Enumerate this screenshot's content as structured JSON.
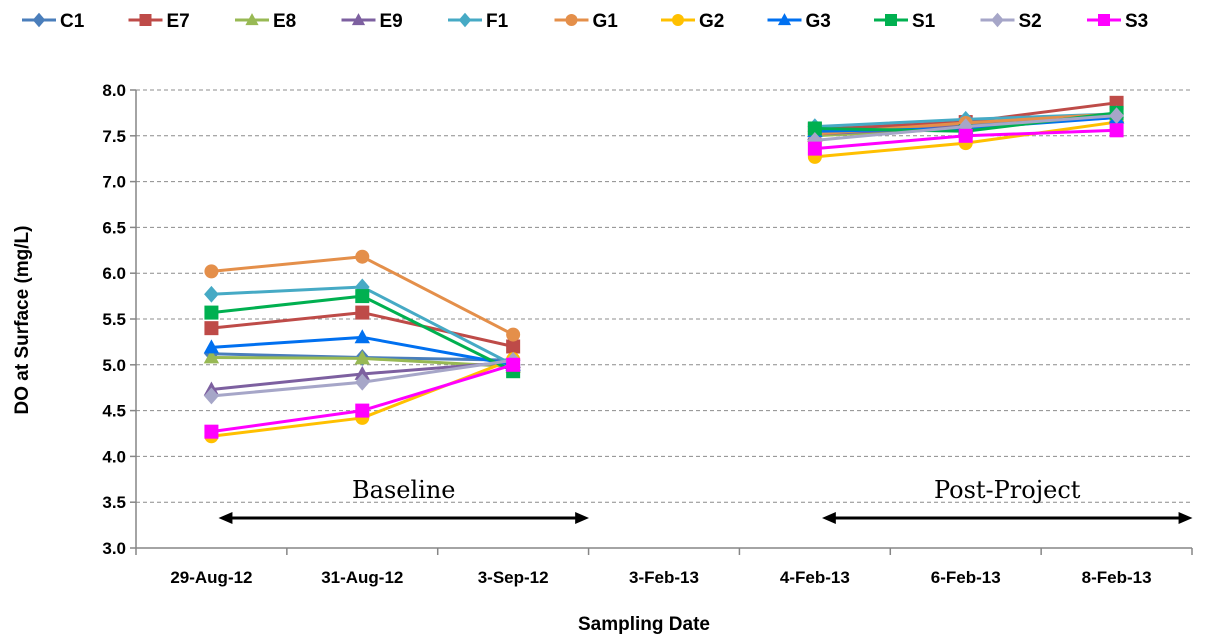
{
  "chart_data": {
    "type": "line",
    "title": "",
    "xlabel": "Sampling Date",
    "ylabel": "DO at Surface (mg/L)",
    "categories": [
      "29-Aug-12",
      "31-Aug-12",
      "3-Sep-12",
      "3-Feb-13",
      "4-Feb-13",
      "6-Feb-13",
      "8-Feb-13"
    ],
    "ylim": [
      3.0,
      8.0
    ],
    "yticks": [
      "3.0",
      "3.5",
      "4.0",
      "4.5",
      "5.0",
      "5.5",
      "6.0",
      "6.5",
      "7.0",
      "7.5",
      "8.0"
    ],
    "grid": "horizontal dashed",
    "legend_position": "top",
    "series": [
      {
        "name": "C1",
        "color": "#4a7ebb",
        "marker": "diamond",
        "values": [
          5.12,
          5.08,
          5.05,
          null,
          7.55,
          7.62,
          7.7
        ]
      },
      {
        "name": "E7",
        "color": "#be4b48",
        "marker": "square",
        "values": [
          5.4,
          5.57,
          5.2,
          null,
          7.57,
          7.65,
          7.86
        ]
      },
      {
        "name": "E8",
        "color": "#98b954",
        "marker": "triangle",
        "values": [
          5.08,
          5.07,
          4.98,
          null,
          7.5,
          7.58,
          7.72
        ]
      },
      {
        "name": "E9",
        "color": "#7d60a0",
        "marker": "triangle",
        "values": [
          4.73,
          4.9,
          5.03,
          null,
          7.52,
          7.6,
          7.7
        ]
      },
      {
        "name": "F1",
        "color": "#46aac5",
        "marker": "diamond",
        "values": [
          5.77,
          5.85,
          5.0,
          null,
          7.6,
          7.68,
          7.74
        ]
      },
      {
        "name": "G1",
        "color": "#e48f4a",
        "marker": "circle",
        "values": [
          6.02,
          6.18,
          5.33,
          null,
          7.52,
          7.64,
          7.74
        ]
      },
      {
        "name": "G2",
        "color": "#ffc000",
        "marker": "circle",
        "values": [
          4.22,
          4.42,
          5.06,
          null,
          7.27,
          7.42,
          7.65
        ]
      },
      {
        "name": "G3",
        "color": "#0070f0",
        "marker": "triangle",
        "values": [
          5.19,
          5.3,
          5.0,
          null,
          7.55,
          7.58,
          7.7
        ]
      },
      {
        "name": "S1",
        "color": "#00b050",
        "marker": "square",
        "values": [
          5.57,
          5.75,
          4.93,
          null,
          7.58,
          7.55,
          7.75
        ]
      },
      {
        "name": "S2",
        "color": "#a6a6c8",
        "marker": "diamond",
        "values": [
          4.66,
          4.81,
          5.05,
          null,
          7.45,
          7.6,
          7.72
        ]
      },
      {
        "name": "S3",
        "color": "#ff00ff",
        "marker": "square",
        "values": [
          4.27,
          4.5,
          5.0,
          null,
          7.36,
          7.5,
          7.56
        ]
      }
    ],
    "annotations": [
      {
        "text": "Baseline",
        "from": "29-Aug-12",
        "to": "3-Sep-12"
      },
      {
        "text": "Post-Project",
        "from": "4-Feb-13",
        "to": "8-Feb-13"
      }
    ]
  }
}
